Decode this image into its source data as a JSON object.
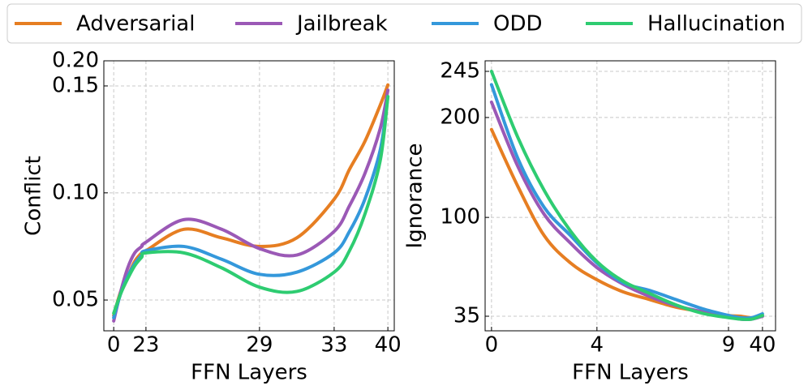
{
  "chart_data": [
    {
      "type": "line",
      "xlabel": "FFN Layers",
      "ylabel": "Conflict",
      "legend": "top",
      "grid": true,
      "x": [
        0,
        5,
        10,
        15,
        20,
        23,
        25,
        27,
        29,
        31,
        33,
        35,
        37,
        39,
        40
      ],
      "xlim": [
        -2,
        41
      ],
      "xticks": [
        0,
        23,
        29,
        33,
        40
      ],
      "ylim": [
        0.036,
        0.2
      ],
      "yticks": [
        0.05,
        {
          "value": 0.1,
          "label": "0.10"
        },
        0.15,
        {
          "value": 0.2,
          "label": "0.20"
        }
      ],
      "series": [
        {
          "name": "Adversarial",
          "color": "#e67e22",
          "values": [
            0.043,
            0.054,
            0.061,
            0.068,
            0.072,
            0.073,
            0.083,
            0.079,
            0.075,
            0.079,
            0.097,
            0.111,
            0.124,
            0.141,
            0.152
          ]
        },
        {
          "name": "Jailbreak",
          "color": "#9b59b6",
          "values": [
            0.0405,
            0.054,
            0.065,
            0.072,
            0.075,
            0.077,
            0.0875,
            0.083,
            0.074,
            0.071,
            0.082,
            0.094,
            0.109,
            0.13,
            0.148
          ]
        },
        {
          "name": "ODD",
          "color": "#3498db",
          "values": [
            0.042,
            0.053,
            0.061,
            0.067,
            0.071,
            0.073,
            0.075,
            0.069,
            0.062,
            0.063,
            0.072,
            0.082,
            0.097,
            0.12,
            0.145
          ]
        },
        {
          "name": "Hallucination",
          "color": "#2ecc71",
          "values": [
            0.044,
            0.053,
            0.06,
            0.066,
            0.07,
            0.072,
            0.072,
            0.065,
            0.056,
            0.054,
            0.063,
            0.073,
            0.09,
            0.115,
            0.145
          ]
        }
      ]
    },
    {
      "type": "line",
      "xlabel": "FFN Layers",
      "ylabel": "Ignorance",
      "grid": true,
      "x": [
        0,
        1,
        2,
        3,
        4,
        5,
        6,
        7,
        8,
        9,
        20,
        30,
        40
      ],
      "xlim": [
        -0.5,
        42
      ],
      "xticks": [
        0,
        4,
        9,
        40
      ],
      "ylim": [
        30,
        250
      ],
      "yticks": [
        35,
        100,
        200,
        245
      ],
      "series": [
        {
          "color": "#e67e22",
          "values": [
            188,
            131,
            88,
            70,
            59,
            51,
            46,
            41,
            38,
            35.5,
            35,
            34.5,
            35.5
          ]
        },
        {
          "color": "#9b59b6",
          "values": [
            215,
            151,
            103,
            83,
            67,
            56,
            48,
            42,
            38,
            35,
            34,
            34,
            35
          ]
        },
        {
          "color": "#3498db",
          "values": [
            232,
            159,
            110,
            88,
            70,
            57,
            52,
            46,
            40,
            35.5,
            34.5,
            34.5,
            36.6
          ]
        },
        {
          "color": "#2ecc71",
          "values": [
            245,
            180,
            127,
            91,
            71,
            58,
            50,
            42.5,
            37,
            34.5,
            34,
            34,
            35.5
          ]
        }
      ]
    }
  ]
}
